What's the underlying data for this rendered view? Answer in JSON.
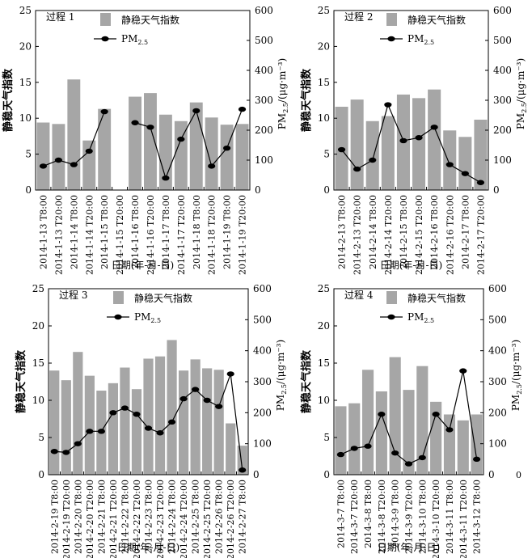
{
  "figure": {
    "xlabel": "日期(年-月-日)",
    "ylabel_left": "静稳天气指数",
    "ylabel_right_main": "PM",
    "ylabel_right_sub": "2.5",
    "ylabel_right_unit": "/(μg·m⁻³)",
    "legend_bar": "静稳天气指数",
    "legend_line_main": "PM",
    "legend_line_sub": "2.5",
    "colors": {
      "bar": "#a6a6a6",
      "line": "#000000",
      "marker": "#000000"
    }
  },
  "chart_data": [
    {
      "type": "bar+line",
      "title": "过程 1",
      "categories": [
        "2014-1-13 T8:00",
        "2014-1-13 T20:00",
        "2014-1-14 T8:00",
        "2014-1-14 T20:00",
        "2014-1-15 T8:00",
        "2014-1-15 T20:00",
        "2014-1-16 T8:00",
        "2014-1-16 T20:00",
        "2014-1-17 T8:00",
        "2014-1-17 T20:00",
        "2014-1-18 T8:00",
        "2014-1-18 T20:00",
        "2014-1-19 T8:00",
        "2014-1-19 T20:00"
      ],
      "label_every": 1,
      "bars": [
        9.4,
        9.2,
        15.4,
        6.9,
        11.3,
        null,
        13.0,
        13.5,
        10.5,
        9.6,
        12.2,
        10.1,
        9.1,
        9.2
      ],
      "pm25": [
        80,
        100,
        85,
        130,
        262,
        null,
        225,
        210,
        40,
        170,
        265,
        80,
        140,
        270
      ],
      "ylim_left": [
        0,
        25
      ],
      "yticks_left": [
        0,
        5,
        10,
        15,
        20,
        25
      ],
      "ylim_right": [
        0,
        600
      ],
      "yticks_right": [
        0,
        100,
        200,
        300,
        400,
        500,
        600
      ]
    },
    {
      "type": "bar+line",
      "title": "过程 2",
      "categories": [
        "2014-2-13 T8:00",
        "2014-2-13 T20:00",
        "2014-2-14 T8:00",
        "2014-2-14 T20:00",
        "2014-2-15 T8:00",
        "2014-2-15 T20:00",
        "2014-2-16 T8:00",
        "2014-2-16 T20:00",
        "2014-2-17 T8:00",
        "2014-2-17 T20:00"
      ],
      "label_every": 1,
      "bars": [
        11.6,
        12.6,
        9.6,
        10.3,
        13.3,
        12.8,
        14.0,
        8.3,
        7.4,
        9.8
      ],
      "pm25": [
        135,
        70,
        100,
        285,
        165,
        175,
        210,
        85,
        55,
        25
      ],
      "ylim_left": [
        0,
        25
      ],
      "yticks_left": [
        0,
        5,
        10,
        15,
        20,
        25
      ],
      "ylim_right": [
        0,
        600
      ],
      "yticks_right": [
        0,
        100,
        200,
        300,
        400,
        500,
        600
      ]
    },
    {
      "type": "bar+line",
      "title": "过程 3",
      "categories": [
        "2014-2-19 T8:00",
        "2014-2-19 T20:00",
        "2014-2-20 T8:00",
        "2014-2-20 T20:00",
        "2014-2-21 T8:00",
        "2014-2-21 T20:00",
        "2014-2-22 T8:00",
        "2014-2-22 T20:00",
        "2014-2-23 T8:00",
        "2014-2-23 T20:00",
        "2014-2-24 T8:00",
        "2014-2-24 T20:00",
        "2014-2-25 T8:00",
        "2014-2-25 T20:00",
        "2014-2-26 T8:00",
        "2014-2-26 T20:00",
        "2014-2-27 T8:00"
      ],
      "label_every": 1,
      "bars": [
        14.0,
        12.7,
        16.5,
        13.3,
        11.3,
        12.3,
        14.4,
        11.5,
        15.6,
        15.9,
        18.1,
        14.0,
        15.5,
        14.3,
        14.1,
        6.9,
        3.9
      ],
      "pm25": [
        75,
        72,
        100,
        140,
        140,
        200,
        215,
        195,
        150,
        135,
        170,
        245,
        275,
        240,
        220,
        325,
        15
      ],
      "ylim_left": [
        0,
        25
      ],
      "yticks_left": [
        0,
        5,
        10,
        15,
        20,
        25
      ],
      "ylim_right": [
        0,
        600
      ],
      "yticks_right": [
        0,
        100,
        200,
        300,
        400,
        500,
        600
      ]
    },
    {
      "type": "bar+line",
      "title": "过程 4",
      "categories": [
        "2014-3-7 T8:00",
        "2014-3-7 T20:00",
        "2014-3-8 T8:00",
        "2014-3-8 T20:00",
        "2014-3-9 T8:00",
        "2014-3-9 T20:00",
        "2014-3-10 T8:00",
        "2014-3-10 T20:00",
        "2014-3-11 T8:00",
        "2014-3-11 T20:00",
        "2014-3-12 T8:00"
      ],
      "label_every": 1,
      "bars": [
        9.2,
        9.6,
        14.1,
        11.2,
        15.8,
        11.4,
        14.6,
        9.8,
        8.1,
        7.3,
        8.1
      ],
      "pm25": [
        65,
        85,
        92,
        195,
        70,
        35,
        55,
        195,
        145,
        335,
        50
      ],
      "ylim_left": [
        0,
        25
      ],
      "yticks_left": [
        0,
        5,
        10,
        15,
        20,
        25
      ],
      "ylim_right": [
        0,
        600
      ],
      "yticks_right": [
        0,
        100,
        200,
        300,
        400,
        500,
        600
      ],
      "extra_right_tick": "0"
    }
  ]
}
